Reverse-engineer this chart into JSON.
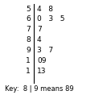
{
  "rows": [
    {
      "stem": "5",
      "leaves": "4   8"
    },
    {
      "stem": "6",
      "leaves": "0   3   5"
    },
    {
      "stem": "7",
      "leaves": "7"
    },
    {
      "stem": "8",
      "leaves": "4"
    },
    {
      "stem": "9",
      "leaves": "3   7"
    },
    {
      "stem": "1",
      "leaves": "09"
    },
    {
      "stem": "1",
      "leaves": "13"
    }
  ],
  "key_text": "Key:  8 | 9 means 89",
  "bg_color": "#ffffff",
  "text_color": "#000000",
  "font_size": 6.5,
  "key_font_size": 6.0
}
